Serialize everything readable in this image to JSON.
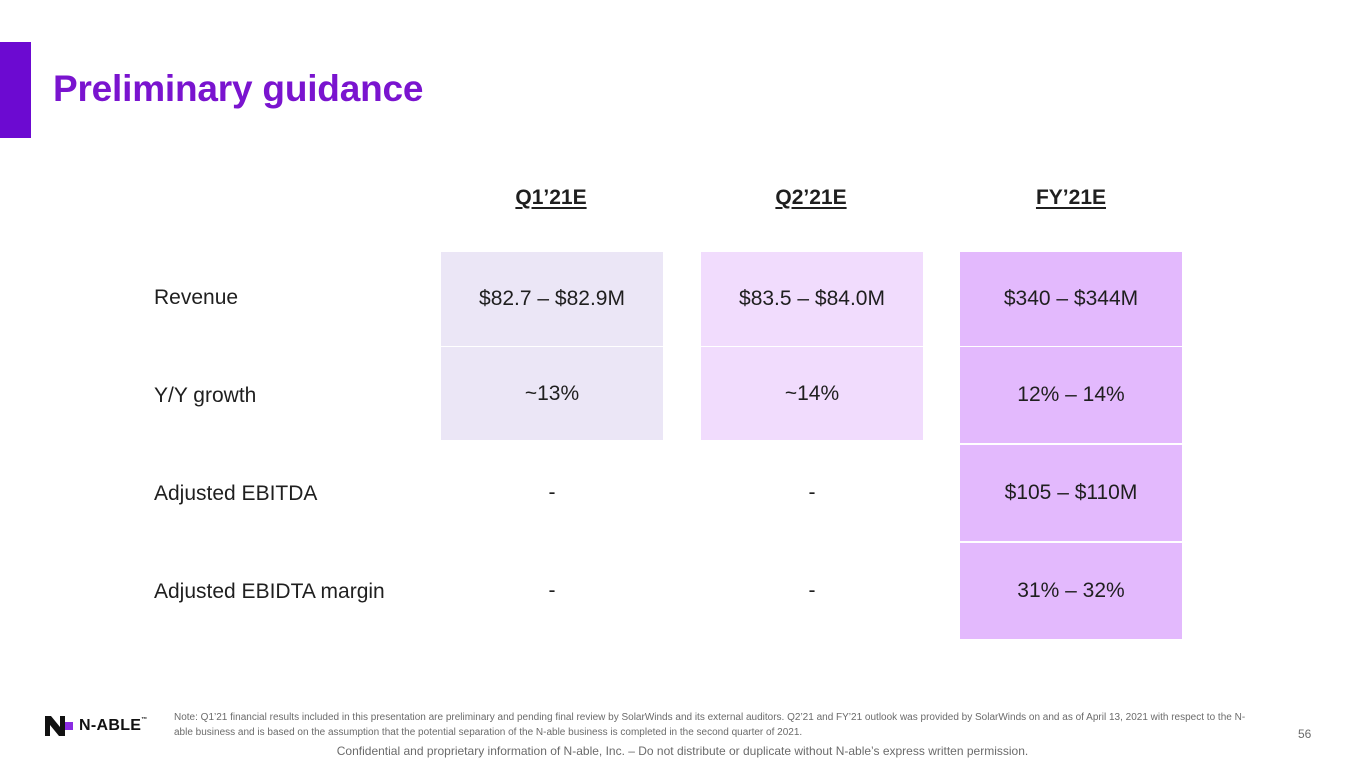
{
  "title": "Preliminary guidance",
  "columns": [
    "Q1’21E",
    "Q2’21E",
    "FY’21E"
  ],
  "rows": [
    {
      "label": "Revenue",
      "values": [
        "$82.7 – $82.9M",
        "$83.5 – $84.0M",
        "$340 – $344M"
      ]
    },
    {
      "label": "Y/Y growth",
      "values": [
        "~13%",
        "~14%",
        "12% – 14%"
      ]
    },
    {
      "label": "Adjusted EBITDA",
      "values": [
        "-",
        "-",
        "$105 – $110M"
      ]
    },
    {
      "label": "Adjusted EBIDTA margin",
      "values": [
        "-",
        "-",
        "31% – 32%"
      ]
    }
  ],
  "logo": {
    "text": "N-ABLE",
    "tm": "™"
  },
  "note": "Note: Q1’21 financial results included in this presentation are preliminary and pending final review by SolarWinds and its external auditors.  Q2’21 and FY’21 outlook was provided by SolarWinds on and as of April 13, 2021 with respect to the N-able business and is based on the assumption that the potential separation of the N-able business is completed in the second quarter of 2021.",
  "page_number": "56",
  "footer": "Confidential and proprietary information of N-able, Inc. – Do not distribute or duplicate without N-able’s express written permission.",
  "colors": {
    "accent": "#6c0ad1",
    "title": "#7a14cf",
    "q1_fill": "#ebe6f6",
    "q2_fill": "#f1dcfd",
    "fy_fill": "#e3b9fd"
  }
}
